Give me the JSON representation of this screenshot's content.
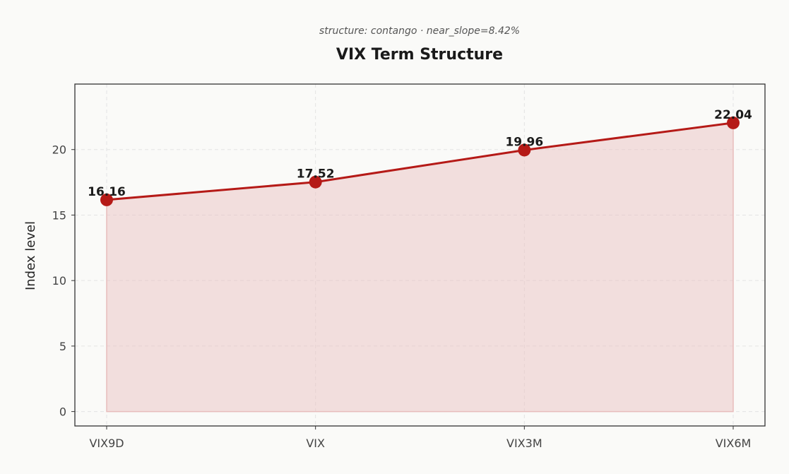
{
  "chart_data": {
    "type": "line",
    "subtitle": "structure: contango · near_slope=8.42%",
    "title": "VIX Term Structure",
    "xlabel": "",
    "ylabel": "Index level",
    "categories": [
      "VIX9D",
      "VIX",
      "VIX3M",
      "VIX6M"
    ],
    "series": [
      {
        "values": [
          16.16,
          17.52,
          19.96,
          22.04
        ]
      }
    ],
    "data_labels": [
      "16.16",
      "17.52",
      "19.96",
      "22.04"
    ],
    "yticks": [
      0,
      5,
      10,
      15,
      20
    ],
    "ylim": [
      -1.1,
      25
    ],
    "grid": true,
    "filled_area": true,
    "colors": {
      "line": "#b51a17",
      "marker": "#b51a17",
      "fill": "#e8bcbc",
      "background": "#fafaf8"
    }
  }
}
